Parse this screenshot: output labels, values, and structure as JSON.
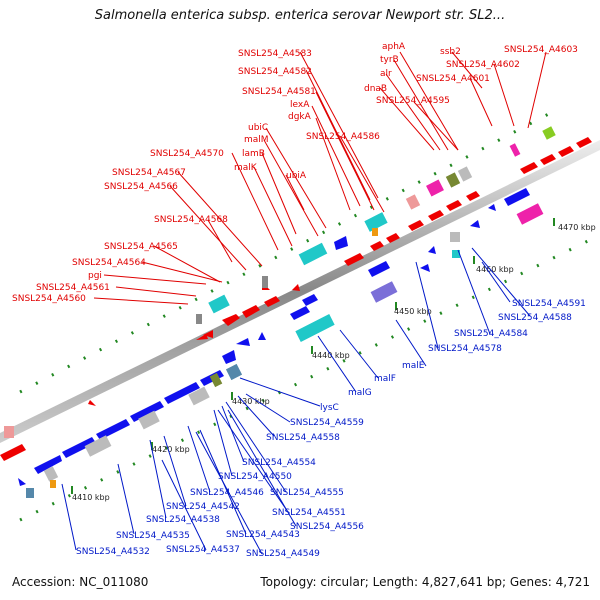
{
  "title": "Salmonella enterica subsp. enterica serovar Newport str. SL2...",
  "footer": {
    "accession": "Accession: NC_011080",
    "summary": "Topology: circular; Length: 4,827,641 bp; Genes: 4,721"
  },
  "colors": {
    "forward": "#ee0000",
    "reverse": "#1010ee",
    "backbone": "#aaaaaa",
    "dots": "#228822",
    "teal": "#20c8c8",
    "violet": "#7b6fd8",
    "magenta": "#ee22aa",
    "grey": "#bbbbbb",
    "olive": "#778833",
    "steel": "#5588aa",
    "orange": "#ee9911",
    "salmon": "#ee9999",
    "lime": "#88cc22"
  },
  "ticks": [
    "4410 kbp",
    "4420 kbp",
    "4430 kbp",
    "4440 kbp",
    "4450 kbp",
    "4460 kbp",
    "4470 kbp"
  ],
  "red_labels": [
    "SNSL254_A4583",
    "SNSL254_A4582",
    "SNSL254_A4581",
    "lexA",
    "dgkA",
    "ubiC",
    "malM",
    "SNSL254_A4586",
    "SNSL254_A4570",
    "lamB",
    "malK",
    "ubiA",
    "SNSL254_A4567",
    "SNSL254_A4566",
    "SNSL254_A4568",
    "SNSL254_A4565",
    "SNSL254_A4564",
    "pgi",
    "SNSL254_A4561",
    "SNSL254_A4560",
    "aphA",
    "tyrB",
    "alr",
    "dnaB",
    "ssb2",
    "SNSL254_A4602",
    "SNSL254_A4601",
    "SNSL254_A4595",
    "SNSL254_A4603"
  ],
  "blue_labels": [
    "SNSL254_A4591",
    "SNSL254_A4588",
    "SNSL254_A4584",
    "SNSL254_A4578",
    "malE",
    "malF",
    "malG",
    "lysC",
    "SNSL254_A4559",
    "SNSL254_A4558",
    "SNSL254_A4554",
    "SNSL254_A4550",
    "SNSL254_A4555",
    "SNSL254_A4546",
    "SNSL254_A4551",
    "SNSL254_A4542",
    "SNSL254_A4556",
    "SNSL254_A4538",
    "SNSL254_A4543",
    "SNSL254_A4535",
    "SNSL254_A4537",
    "SNSL254_A4549",
    "SNSL254_A4532"
  ]
}
